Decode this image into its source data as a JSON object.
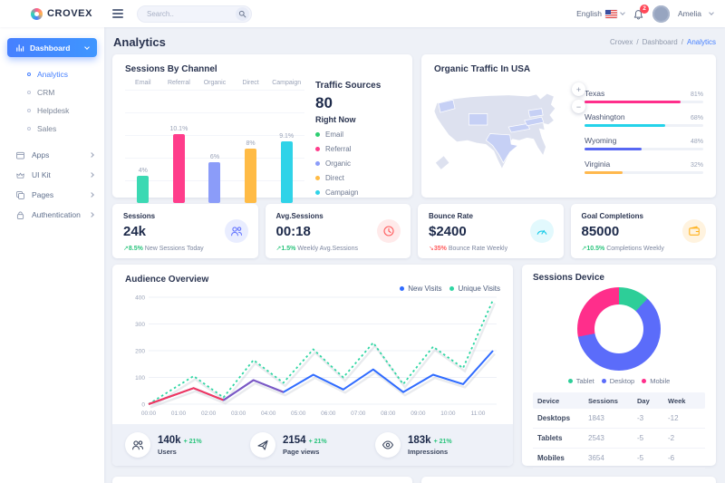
{
  "brand": {
    "name": "CROVEX"
  },
  "header": {
    "search_placeholder": "Search..",
    "language": "English",
    "notification_count": "2",
    "user_name": "Amelia"
  },
  "page_title": "Analytics",
  "breadcrumb": {
    "crumbs": [
      "Crovex",
      "Dashboard",
      "Analytics"
    ],
    "separator": "/"
  },
  "sidebar": {
    "active": {
      "label": "Dashboard"
    },
    "sub_items": [
      {
        "label": "Analytics",
        "active": true
      },
      {
        "label": "CRM"
      },
      {
        "label": "Helpdesk"
      },
      {
        "label": "Sales"
      }
    ],
    "items": [
      {
        "label": "Apps",
        "icon": "box-icon"
      },
      {
        "label": "UI Kit",
        "icon": "crown-icon"
      },
      {
        "label": "Pages",
        "icon": "pages-icon"
      },
      {
        "label": "Authentication",
        "icon": "lock-icon"
      }
    ]
  },
  "sessions_by_channel": {
    "title": "Sessions By Channel"
  },
  "traffic_sources": {
    "title": "Traffic Sources",
    "value": "80",
    "subtitle": "Right Now",
    "legend": [
      {
        "label": "Email",
        "color": "#2dce71"
      },
      {
        "label": "Referral",
        "color": "#ff3d8b"
      },
      {
        "label": "Organic",
        "color": "#8b9cf9"
      },
      {
        "label": "Direct",
        "color": "#ffbb45"
      },
      {
        "label": "Campaign",
        "color": "#2fd3e8"
      }
    ]
  },
  "organic_traffic": {
    "title": "Organic Traffic In USA",
    "zoom_in_label": "+",
    "zoom_out_label": "−"
  },
  "stats": [
    {
      "title": "Sessions",
      "value": "24k",
      "arrow": "↗",
      "delta": "8.5%",
      "desc": "New Sessions Today",
      "icon": "users-icon",
      "icon_color": "#6576ff"
    },
    {
      "title": "Avg.Sessions",
      "value": "00:18",
      "arrow": "↗",
      "delta": "1.5%",
      "desc": "Weekly Avg.Sessions",
      "icon": "clock-icon",
      "icon_color": "#ff5b5c"
    },
    {
      "title": "Bounce Rate",
      "value": "$2400",
      "arrow": "↘",
      "delta": "35%",
      "desc": "Bounce Rate Weekly",
      "icon": "gauge-icon",
      "icon_color": "#0fc9e7"
    },
    {
      "title": "Goal Completions",
      "value": "85000",
      "arrow": "↗",
      "delta": "10.5%",
      "desc": "Completions Weekly",
      "icon": "wallet-icon",
      "icon_color": "#ffb21d"
    }
  ],
  "audience_overview": {
    "title": "Audience Overview",
    "footer_stats": [
      {
        "value": "140k",
        "delta": "+ 21%",
        "label": "Users",
        "icon": "users-icon"
      },
      {
        "value": "2154",
        "delta": "+ 21%",
        "label": "Page views",
        "icon": "rocket-icon"
      },
      {
        "value": "183k",
        "delta": "+ 21%",
        "label": "Impressions",
        "icon": "eye-icon"
      }
    ]
  },
  "sessions_device": {
    "title": "Sessions Device",
    "table": {
      "headers": [
        "Device",
        "Sessions",
        "Day",
        "Week"
      ],
      "rows": [
        [
          "Desktops",
          "1843",
          "-3",
          "-12"
        ],
        [
          "Tablets",
          "2543",
          "-5",
          "-2"
        ],
        [
          "Mobiles",
          "3654",
          "-5",
          "-6"
        ]
      ]
    }
  },
  "chart_data": [
    {
      "id": "sessions_by_channel",
      "type": "bar",
      "title": "Sessions By Channel",
      "categories": [
        "Email",
        "Referral",
        "Organic",
        "Direct",
        "Campaign"
      ],
      "values": [
        4,
        10.1,
        6,
        8,
        9.1
      ],
      "labels": [
        "4%",
        "10.1%",
        "6%",
        "8%",
        "9.1%"
      ],
      "colors": [
        "#3bd9b3",
        "#ff3d8b",
        "#8b9cf9",
        "#ffbb45",
        "#2fd3e8"
      ],
      "ylim": [
        0,
        10.1
      ],
      "grid": true
    },
    {
      "id": "organic_traffic_usa",
      "type": "bar",
      "orientation": "horizontal",
      "title": "Organic Traffic In USA",
      "categories": [
        "Texas",
        "Washington",
        "Wyoming",
        "Virginia"
      ],
      "values": [
        81,
        68,
        48,
        32
      ],
      "labels": [
        "81%",
        "68%",
        "48%",
        "32%"
      ],
      "colors": [
        "#ff2e8b",
        "#24d3ea",
        "#5868f3",
        "#ffb84d"
      ],
      "xlim": [
        0,
        100
      ],
      "highlighted_states": [
        "Washington",
        "Wyoming",
        "Texas",
        "Pennsylvania",
        "Kentucky",
        "Virginia"
      ]
    },
    {
      "id": "audience_overview",
      "type": "line",
      "title": "Audience Overview",
      "x_ticks": [
        "00:00",
        "01:00",
        "02:00",
        "03:00",
        "04:00",
        "05:00",
        "06:00",
        "07:00",
        "08:00",
        "09:00",
        "10:00",
        "11:00"
      ],
      "x_hours": [
        0,
        1.5,
        2.5,
        3.5,
        4.5,
        5.5,
        6.5,
        7.5,
        8.5,
        9.5,
        10.5,
        11.5
      ],
      "series": [
        {
          "name": "New Visits",
          "color": "#2f6bff",
          "style": "solid",
          "values": [
            0,
            60,
            15,
            90,
            45,
            110,
            55,
            130,
            45,
            110,
            75,
            200
          ]
        },
        {
          "name": "Unique Visits",
          "color": "#2fd6a3",
          "style": "dotted",
          "values": [
            0,
            105,
            25,
            165,
            80,
            205,
            100,
            230,
            75,
            215,
            135,
            390
          ]
        }
      ],
      "overlay_segments": [
        {
          "color": "#f5365c",
          "hours": [
            0,
            1.5,
            2.5
          ],
          "values": [
            0,
            60,
            15
          ]
        },
        {
          "color": "#7e57c2",
          "hours": [
            2.5,
            3.5,
            4.5
          ],
          "values": [
            15,
            90,
            45
          ]
        }
      ],
      "ylim": [
        0,
        400
      ],
      "y_ticks": [
        0,
        100,
        200,
        300,
        400
      ],
      "legend_position": "top-right",
      "grid": true
    },
    {
      "id": "sessions_device",
      "type": "pie",
      "title": "Sessions Device",
      "labels": [
        "Tablet",
        "Desktop",
        "Mobile"
      ],
      "values": [
        12,
        60,
        28
      ],
      "colors": [
        "#2dce98",
        "#5b6cfa",
        "#ff2e8b"
      ]
    }
  ]
}
